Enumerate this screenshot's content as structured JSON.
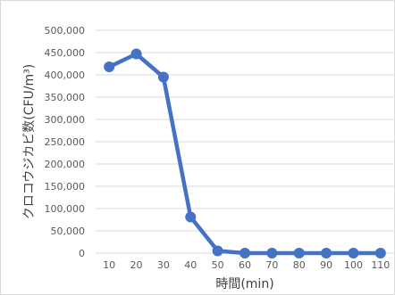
{
  "chart_data": {
    "type": "line",
    "title": "",
    "xlabel": "時間(min)",
    "ylabel": "クロコウジカビ数(CFU/m³)",
    "categories": [
      "10",
      "20",
      "30",
      "40",
      "50",
      "60",
      "70",
      "80",
      "90",
      "100",
      "110"
    ],
    "series": [
      {
        "values": [
          418000,
          447000,
          395000,
          81000,
          5000,
          0,
          0,
          0,
          0,
          0,
          0
        ],
        "color": "#4472c4"
      }
    ],
    "ylim": [
      0,
      500000
    ],
    "yticks": [
      "0",
      "50,000",
      "100,000",
      "150,000",
      "200,000",
      "250,000",
      "300,000",
      "350,000",
      "400,000",
      "450,000",
      "500,000"
    ],
    "grid": true,
    "legend": "none",
    "colors": {
      "grid": "#d9d9d9",
      "text": "#595959"
    }
  }
}
